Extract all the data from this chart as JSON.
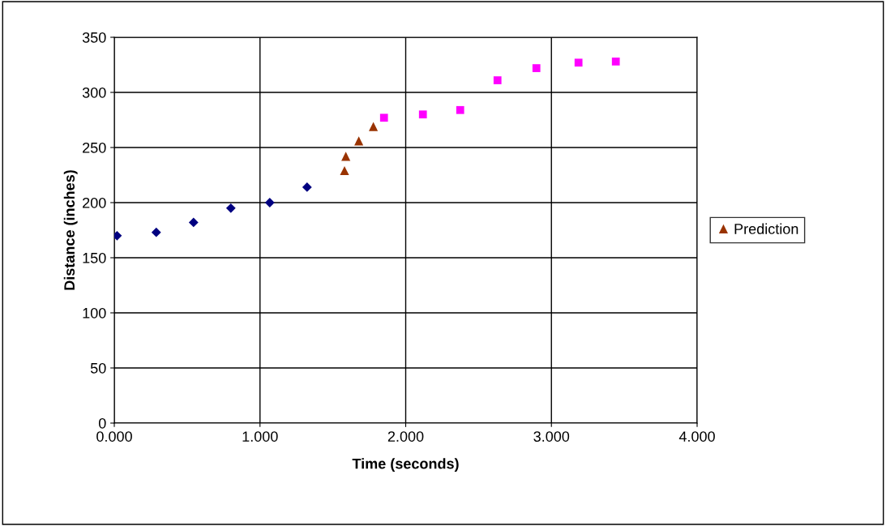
{
  "chart_data": {
    "type": "scatter",
    "xlabel": "Time (seconds)",
    "ylabel": "Distance (inches)",
    "xlim": [
      0,
      4
    ],
    "xticks": [
      {
        "value": 0,
        "label": "0.000"
      },
      {
        "value": 1,
        "label": "1.000"
      },
      {
        "value": 2,
        "label": "2.000"
      },
      {
        "value": 3,
        "label": "3.000"
      },
      {
        "value": 4,
        "label": "4.000"
      }
    ],
    "ylim": [
      0,
      350
    ],
    "yticks": [
      0,
      50,
      100,
      150,
      200,
      250,
      300,
      350
    ],
    "grid": true,
    "legend": "right",
    "series": [
      {
        "color": "#000080",
        "marker": "diamond",
        "x": [
          0.019,
          0.288,
          0.544,
          0.8,
          1.067,
          1.323
        ],
        "values": [
          170,
          173,
          182,
          195,
          200,
          214
        ]
      },
      {
        "color": "#ff00ff",
        "marker": "square",
        "x": [
          1.851,
          2.118,
          2.374,
          2.63,
          2.897,
          3.186,
          3.442
        ],
        "values": [
          277,
          280,
          284,
          311,
          322,
          327,
          328
        ]
      },
      {
        "name": "Prediction",
        "color": "#993300",
        "marker": "triangle",
        "x": [
          1.58,
          1.589,
          1.678,
          1.778
        ],
        "values": [
          229,
          242,
          256,
          269
        ]
      }
    ]
  }
}
